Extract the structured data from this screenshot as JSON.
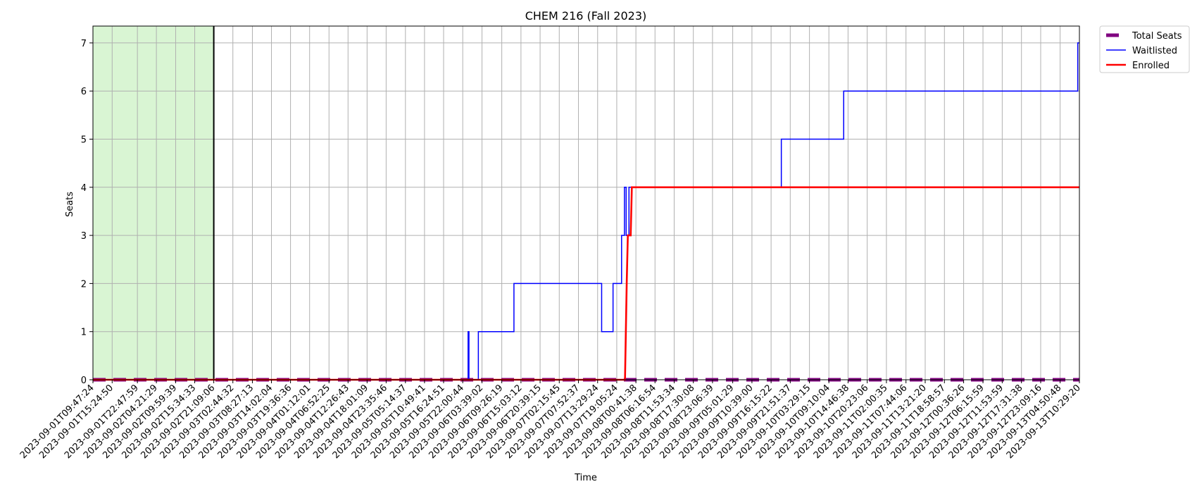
{
  "chart_data": {
    "type": "line",
    "title": "CHEM 216 (Fall 2023)",
    "xlabel": "Time",
    "ylabel": "Seats",
    "ylim": [
      0,
      7.35
    ],
    "yticks": [
      0,
      1,
      2,
      3,
      4,
      5,
      6,
      7
    ],
    "grid": true,
    "legend_position": "outside top-right",
    "x_tick_labels": [
      "2023-09-01T09:47:24",
      "2023-09-01T15:24:50",
      "2023-09-01T22:47:59",
      "2023-09-02T04:21:29",
      "2023-09-02T09:59:39",
      "2023-09-02T15:34:33",
      "2023-09-02T21:09:06",
      "2023-09-03T02:44:32",
      "2023-09-03T08:27:13",
      "2023-09-03T14:02:04",
      "2023-09-03T19:36:36",
      "2023-09-04T01:12:01",
      "2023-09-04T06:52:25",
      "2023-09-04T12:26:43",
      "2023-09-04T18:01:09",
      "2023-09-04T23:35:46",
      "2023-09-05T05:14:37",
      "2023-09-05T10:49:41",
      "2023-09-05T16:24:51",
      "2023-09-05T22:00:44",
      "2023-09-06T03:39:02",
      "2023-09-06T09:26:19",
      "2023-09-06T15:03:12",
      "2023-09-06T20:39:15",
      "2023-09-07T02:15:45",
      "2023-09-07T07:52:37",
      "2023-09-07T13:29:24",
      "2023-09-07T19:05:24",
      "2023-09-08T00:41:38",
      "2023-09-08T06:16:54",
      "2023-09-08T11:53:34",
      "2023-09-08T17:30:08",
      "2023-09-08T23:06:39",
      "2023-09-09T05:01:29",
      "2023-09-09T10:39:00",
      "2023-09-09T16:15:22",
      "2023-09-09T21:51:37",
      "2023-09-10T03:29:15",
      "2023-09-10T09:10:04",
      "2023-09-10T14:46:38",
      "2023-09-10T20:23:06",
      "2023-09-11T02:00:35",
      "2023-09-11T07:44:06",
      "2023-09-11T13:21:20",
      "2023-09-11T18:58:57",
      "2023-09-12T00:36:26",
      "2023-09-12T06:15:59",
      "2023-09-12T11:53:59",
      "2023-09-12T17:31:38",
      "2023-09-12T23:09:16",
      "2023-09-13T04:50:48",
      "2023-09-13T10:29:20"
    ],
    "shaded_region": {
      "x_start": "2023-09-01T09:47:24",
      "x_end": "2023-09-02T21:09:06",
      "color": "#d9f5d3"
    },
    "vertical_line": {
      "x": "2023-09-02T21:09:06",
      "color": "#000000"
    },
    "series": [
      {
        "name": "Total Seats",
        "color": "#800080",
        "style": "dashed-thick",
        "points": [
          [
            "2023-09-01T09:47:24",
            0
          ],
          [
            "2023-09-13T10:29:20",
            0
          ]
        ]
      },
      {
        "name": "Waitlisted",
        "color": "#0000ff",
        "style": "step",
        "points": [
          [
            "2023-09-01T09:47:24",
            0
          ],
          [
            "2023-09-05T23:35:00",
            0
          ],
          [
            "2023-09-05T23:35:00",
            1
          ],
          [
            "2023-09-05T23:50:00",
            1
          ],
          [
            "2023-09-05T23:50:00",
            0
          ],
          [
            "2023-09-06T02:35:00",
            0
          ],
          [
            "2023-09-06T02:35:00",
            1
          ],
          [
            "2023-09-06T13:00:00",
            1
          ],
          [
            "2023-09-06T13:00:00",
            2
          ],
          [
            "2023-09-07T14:40:00",
            2
          ],
          [
            "2023-09-07T14:40:00",
            1
          ],
          [
            "2023-09-07T18:00:00",
            1
          ],
          [
            "2023-09-07T18:00:00",
            2
          ],
          [
            "2023-09-07T20:30:00",
            2
          ],
          [
            "2023-09-07T20:30:00",
            3
          ],
          [
            "2023-09-07T21:20:00",
            3
          ],
          [
            "2023-09-07T21:20:00",
            4
          ],
          [
            "2023-09-07T21:50:00",
            4
          ],
          [
            "2023-09-07T21:50:00",
            3
          ],
          [
            "2023-09-07T22:40:00",
            3
          ],
          [
            "2023-09-07T22:40:00",
            4
          ],
          [
            "2023-09-09T19:15:00",
            4
          ],
          [
            "2023-09-09T19:15:00",
            5
          ],
          [
            "2023-09-10T13:30:00",
            5
          ],
          [
            "2023-09-10T13:30:00",
            6
          ],
          [
            "2023-09-13T10:00:00",
            6
          ],
          [
            "2023-09-13T10:00:00",
            7
          ],
          [
            "2023-09-13T10:29:20",
            7
          ]
        ]
      },
      {
        "name": "Enrolled",
        "color": "#ff0000",
        "style": "step",
        "points": [
          [
            "2023-09-01T09:47:24",
            0
          ],
          [
            "2023-09-07T21:30:00",
            0
          ],
          [
            "2023-09-07T22:00:00",
            2
          ],
          [
            "2023-09-07T22:20:00",
            3
          ],
          [
            "2023-09-07T23:10:00",
            3
          ],
          [
            "2023-09-07T23:30:00",
            4
          ],
          [
            "2023-09-13T10:29:20",
            4
          ]
        ]
      }
    ]
  }
}
